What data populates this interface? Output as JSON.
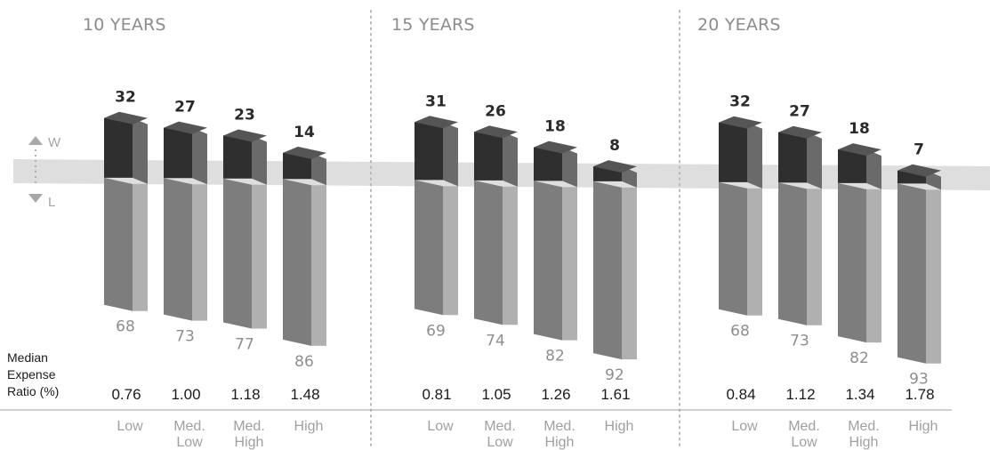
{
  "chart_data": {
    "type": "bar",
    "legend": {
      "win": "W",
      "loss": "L"
    },
    "row_title_lines": [
      "Median",
      "Expense",
      "Ratio (%)"
    ],
    "panels": [
      {
        "title": "10 YEARS",
        "categories": [
          [
            "Low"
          ],
          [
            "Med.",
            "Low"
          ],
          [
            "Med.",
            "High"
          ],
          [
            "High"
          ]
        ],
        "win": [
          32,
          27,
          23,
          14
        ],
        "loss": [
          68,
          73,
          77,
          86
        ],
        "expense_ratio": [
          "0.76",
          "1.00",
          "1.18",
          "1.48"
        ]
      },
      {
        "title": "15 YEARS",
        "categories": [
          [
            "Low"
          ],
          [
            "Med.",
            "Low"
          ],
          [
            "Med.",
            "High"
          ],
          [
            "High"
          ]
        ],
        "win": [
          31,
          26,
          18,
          8
        ],
        "loss": [
          69,
          74,
          82,
          92
        ],
        "expense_ratio": [
          "0.81",
          "1.05",
          "1.26",
          "1.61"
        ]
      },
      {
        "title": "20 YEARS",
        "categories": [
          [
            "Low"
          ],
          [
            "Med.",
            "Low"
          ],
          [
            "Med.",
            "High"
          ],
          [
            "High"
          ]
        ],
        "win": [
          32,
          27,
          18,
          7
        ],
        "loss": [
          68,
          73,
          82,
          93
        ],
        "expense_ratio": [
          "0.84",
          "1.12",
          "1.34",
          "1.78"
        ]
      }
    ]
  }
}
